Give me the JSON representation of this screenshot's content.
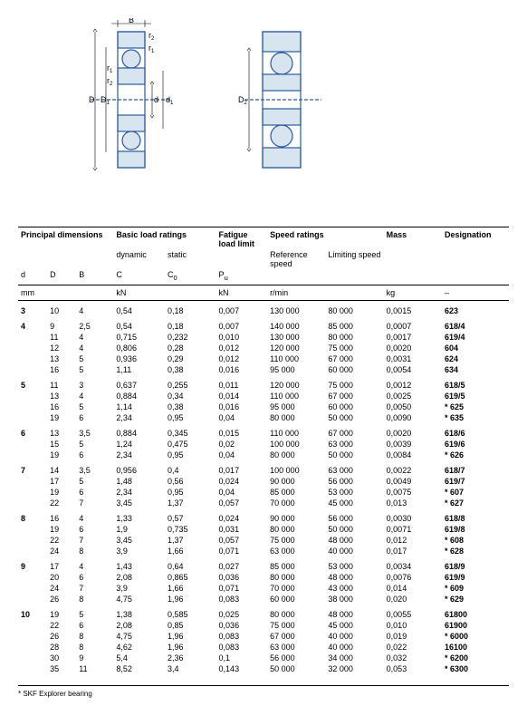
{
  "diagram_labels": {
    "B": "B",
    "r1": "r",
    "r2": "r",
    "D": "D",
    "D1": "D",
    "d": "d",
    "d1": "d",
    "D2": "D"
  },
  "headers": {
    "principal": "Principal dimensions",
    "basic": "Basic load ratings",
    "dynamic": "dynamic",
    "static": "static",
    "fatigue": "Fatigue load limit",
    "speed": "Speed ratings",
    "ref": "Reference speed",
    "lim": "Limiting speed",
    "mass": "Mass",
    "desig": "Designation",
    "d": "d",
    "D": "D",
    "Bh": "B",
    "C": "C",
    "C0": "C",
    "Pu": "P",
    "0sub": "0",
    "usub": "u",
    "1sub": "1",
    "2sub": "2"
  },
  "units": {
    "mm": "mm",
    "kN": "kN",
    "rmin": "r/min",
    "kg": "kg",
    "dash": "–"
  },
  "footnote": "* SKF Explorer bearing",
  "rows": [
    {
      "g": 1,
      "d": "3",
      "D": "10",
      "B": "4",
      "C": "0,54",
      "C0": "0,18",
      "Pu": "0,007",
      "ref": "130 000",
      "lim": "80 000",
      "m": "0,0015",
      "des": "623"
    },
    {
      "g": 1,
      "d": "4",
      "D": "9",
      "B": "2,5",
      "C": "0,54",
      "C0": "0,18",
      "Pu": "0,007",
      "ref": "140 000",
      "lim": "85 000",
      "m": "0,0007",
      "des": "618/4"
    },
    {
      "d": "",
      "D": "11",
      "B": "4",
      "C": "0,715",
      "C0": "0,232",
      "Pu": "0,010",
      "ref": "130 000",
      "lim": "80 000",
      "m": "0,0017",
      "des": "619/4"
    },
    {
      "d": "",
      "D": "12",
      "B": "4",
      "C": "0,806",
      "C0": "0,28",
      "Pu": "0,012",
      "ref": "120 000",
      "lim": "75 000",
      "m": "0,0020",
      "des": "604"
    },
    {
      "d": "",
      "D": "13",
      "B": "5",
      "C": "0,936",
      "C0": "0,29",
      "Pu": "0,012",
      "ref": "110 000",
      "lim": "67 000",
      "m": "0,0031",
      "des": "624"
    },
    {
      "d": "",
      "D": "16",
      "B": "5",
      "C": "1,11",
      "C0": "0,38",
      "Pu": "0,016",
      "ref": "95 000",
      "lim": "60 000",
      "m": "0,0054",
      "des": "634"
    },
    {
      "g": 1,
      "d": "5",
      "D": "11",
      "B": "3",
      "C": "0,637",
      "C0": "0,255",
      "Pu": "0,011",
      "ref": "120 000",
      "lim": "75 000",
      "m": "0,0012",
      "des": "618/5"
    },
    {
      "d": "",
      "D": "13",
      "B": "4",
      "C": "0,884",
      "C0": "0,34",
      "Pu": "0,014",
      "ref": "110 000",
      "lim": "67 000",
      "m": "0,0025",
      "des": "619/5"
    },
    {
      "d": "",
      "D": "16",
      "B": "5",
      "C": "1,14",
      "C0": "0,38",
      "Pu": "0,016",
      "ref": "95 000",
      "lim": "60 000",
      "m": "0,0050",
      "des": "* 625"
    },
    {
      "d": "",
      "D": "19",
      "B": "6",
      "C": "2,34",
      "C0": "0,95",
      "Pu": "0,04",
      "ref": "80 000",
      "lim": "50 000",
      "m": "0,0090",
      "des": "* 635"
    },
    {
      "g": 1,
      "d": "6",
      "D": "13",
      "B": "3,5",
      "C": "0,884",
      "C0": "0,345",
      "Pu": "0,015",
      "ref": "110 000",
      "lim": "67 000",
      "m": "0,0020",
      "des": "618/6"
    },
    {
      "d": "",
      "D": "15",
      "B": "5",
      "C": "1,24",
      "C0": "0,475",
      "Pu": "0,02",
      "ref": "100 000",
      "lim": "63 000",
      "m": "0,0039",
      "des": "619/6"
    },
    {
      "d": "",
      "D": "19",
      "B": "6",
      "C": "2,34",
      "C0": "0,95",
      "Pu": "0,04",
      "ref": "80 000",
      "lim": "50 000",
      "m": "0,0084",
      "des": "* 626"
    },
    {
      "g": 1,
      "d": "7",
      "D": "14",
      "B": "3,5",
      "C": "0,956",
      "C0": "0,4",
      "Pu": "0,017",
      "ref": "100 000",
      "lim": "63 000",
      "m": "0,0022",
      "des": "618/7"
    },
    {
      "d": "",
      "D": "17",
      "B": "5",
      "C": "1,48",
      "C0": "0,56",
      "Pu": "0,024",
      "ref": "90 000",
      "lim": "56 000",
      "m": "0,0049",
      "des": "619/7"
    },
    {
      "d": "",
      "D": "19",
      "B": "6",
      "C": "2,34",
      "C0": "0,95",
      "Pu": "0,04",
      "ref": "85 000",
      "lim": "53 000",
      "m": "0,0075",
      "des": "* 607"
    },
    {
      "d": "",
      "D": "22",
      "B": "7",
      "C": "3,45",
      "C0": "1,37",
      "Pu": "0,057",
      "ref": "70 000",
      "lim": "45 000",
      "m": "0,013",
      "des": "* 627"
    },
    {
      "g": 1,
      "d": "8",
      "D": "16",
      "B": "4",
      "C": "1,33",
      "C0": "0,57",
      "Pu": "0,024",
      "ref": "90 000",
      "lim": "56 000",
      "m": "0,0030",
      "des": "618/8"
    },
    {
      "d": "",
      "D": "19",
      "B": "6",
      "C": "1,9",
      "C0": "0,735",
      "Pu": "0,031",
      "ref": "80 000",
      "lim": "50 000",
      "m": "0,0071",
      "des": "619/8"
    },
    {
      "d": "",
      "D": "22",
      "B": "7",
      "C": "3,45",
      "C0": "1,37",
      "Pu": "0,057",
      "ref": "75 000",
      "lim": "48 000",
      "m": "0,012",
      "des": "* 608"
    },
    {
      "d": "",
      "D": "24",
      "B": "8",
      "C": "3,9",
      "C0": "1,66",
      "Pu": "0,071",
      "ref": "63 000",
      "lim": "40 000",
      "m": "0,017",
      "des": "* 628"
    },
    {
      "g": 1,
      "d": "9",
      "D": "17",
      "B": "4",
      "C": "1,43",
      "C0": "0,64",
      "Pu": "0,027",
      "ref": "85 000",
      "lim": "53 000",
      "m": "0,0034",
      "des": "618/9"
    },
    {
      "d": "",
      "D": "20",
      "B": "6",
      "C": "2,08",
      "C0": "0,865",
      "Pu": "0,036",
      "ref": "80 000",
      "lim": "48 000",
      "m": "0,0076",
      "des": "619/9"
    },
    {
      "d": "",
      "D": "24",
      "B": "7",
      "C": "3,9",
      "C0": "1,66",
      "Pu": "0,071",
      "ref": "70 000",
      "lim": "43 000",
      "m": "0,014",
      "des": "* 609"
    },
    {
      "d": "",
      "D": "26",
      "B": "8",
      "C": "4,75",
      "C0": "1,96",
      "Pu": "0,083",
      "ref": "60 000",
      "lim": "38 000",
      "m": "0,020",
      "des": "* 629"
    },
    {
      "g": 1,
      "d": "10",
      "D": "19",
      "B": "5",
      "C": "1,38",
      "C0": "0,585",
      "Pu": "0,025",
      "ref": "80 000",
      "lim": "48 000",
      "m": "0,0055",
      "des": "61800"
    },
    {
      "d": "",
      "D": "22",
      "B": "6",
      "C": "2,08",
      "C0": "0,85",
      "Pu": "0,036",
      "ref": "75 000",
      "lim": "45 000",
      "m": "0,010",
      "des": "61900"
    },
    {
      "d": "",
      "D": "26",
      "B": "8",
      "C": "4,75",
      "C0": "1,96",
      "Pu": "0,083",
      "ref": "67 000",
      "lim": "40 000",
      "m": "0,019",
      "des": "* 6000"
    },
    {
      "d": "",
      "D": "28",
      "B": "8",
      "C": "4,62",
      "C0": "1,96",
      "Pu": "0,083",
      "ref": "63 000",
      "lim": "40 000",
      "m": "0,022",
      "des": "16100"
    },
    {
      "d": "",
      "D": "30",
      "B": "9",
      "C": "5,4",
      "C0": "2,36",
      "Pu": "0,1",
      "ref": "56 000",
      "lim": "34 000",
      "m": "0,032",
      "des": "* 6200"
    },
    {
      "d": "",
      "D": "35",
      "B": "11",
      "C": "8,52",
      "C0": "3,4",
      "Pu": "0,143",
      "ref": "50 000",
      "lim": "32 000",
      "m": "0,053",
      "des": "* 6300"
    }
  ]
}
